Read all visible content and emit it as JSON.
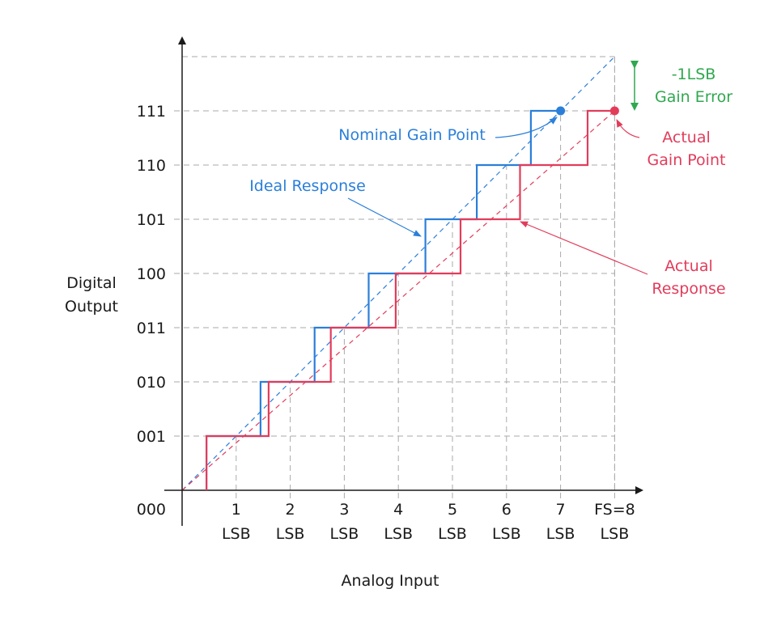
{
  "colors": {
    "ideal": "#2b7fd9",
    "actual": "#e23c5a",
    "gain_error": "#2fa84f",
    "grid": "#aaaaaa",
    "axis": "#1a1a1a"
  },
  "chart_data": {
    "type": "line",
    "xlabel": "Analog Input",
    "ylabel": [
      "Digital",
      "Output"
    ],
    "xlim": [
      0,
      8
    ],
    "ylim": [
      0,
      8
    ],
    "x_ticks": [
      {
        "value": 1,
        "num": "1",
        "unit": "LSB"
      },
      {
        "value": 2,
        "num": "2",
        "unit": "LSB"
      },
      {
        "value": 3,
        "num": "3",
        "unit": "LSB"
      },
      {
        "value": 4,
        "num": "4",
        "unit": "LSB"
      },
      {
        "value": 5,
        "num": "5",
        "unit": "LSB"
      },
      {
        "value": 6,
        "num": "6",
        "unit": "LSB"
      },
      {
        "value": 7,
        "num": "7",
        "unit": "LSB"
      },
      {
        "value": 8,
        "num": "FS=8",
        "unit": "LSB"
      }
    ],
    "y_ticks": [
      {
        "value": 0,
        "label": "000"
      },
      {
        "value": 1,
        "label": "001"
      },
      {
        "value": 2,
        "label": "010"
      },
      {
        "value": 3,
        "label": "011"
      },
      {
        "value": 4,
        "label": "100"
      },
      {
        "value": 5,
        "label": "101"
      },
      {
        "value": 6,
        "label": "110"
      },
      {
        "value": 7,
        "label": "111"
      }
    ],
    "series": [
      {
        "name": "Ideal Response",
        "color": "#2b7fd9",
        "style": "step",
        "points": [
          [
            0.45,
            0
          ],
          [
            0.45,
            1
          ],
          [
            1.45,
            1
          ],
          [
            1.45,
            2
          ],
          [
            2.45,
            2
          ],
          [
            2.45,
            3
          ],
          [
            3.45,
            3
          ],
          [
            3.45,
            4
          ],
          [
            4.5,
            4
          ],
          [
            4.5,
            5
          ],
          [
            5.45,
            5
          ],
          [
            5.45,
            6
          ],
          [
            6.45,
            6
          ],
          [
            6.45,
            7
          ],
          [
            7.0,
            7
          ]
        ]
      },
      {
        "name": "Actual Response",
        "color": "#e23c5a",
        "style": "step",
        "points": [
          [
            0.45,
            0
          ],
          [
            0.45,
            1
          ],
          [
            1.6,
            1
          ],
          [
            1.6,
            2
          ],
          [
            2.75,
            2
          ],
          [
            2.75,
            3
          ],
          [
            3.95,
            3
          ],
          [
            3.95,
            4
          ],
          [
            5.15,
            4
          ],
          [
            5.15,
            5
          ],
          [
            6.25,
            5
          ],
          [
            6.25,
            6
          ],
          [
            7.5,
            6
          ],
          [
            7.5,
            7
          ],
          [
            8.0,
            7
          ]
        ]
      }
    ],
    "reference_lines": [
      {
        "name": "ideal-line",
        "color": "#2b7fd9",
        "from": [
          0,
          0
        ],
        "to": [
          8,
          8
        ]
      },
      {
        "name": "actual-line",
        "color": "#e23c5a",
        "from": [
          0,
          0
        ],
        "to": [
          8,
          7
        ]
      }
    ],
    "points": [
      {
        "name": "nominal-gain-point",
        "x": 7,
        "y": 7,
        "color": "#2b7fd9"
      },
      {
        "name": "actual-gain-point",
        "x": 8,
        "y": 7,
        "color": "#e23c5a"
      }
    ],
    "annotations": {
      "nominal_gain_point": "Nominal Gain Point",
      "ideal_response": "Ideal Response",
      "actual_gain_point": [
        "Actual",
        "Gain Point"
      ],
      "actual_response": [
        "Actual",
        "Response"
      ],
      "gain_error": [
        "-1LSB",
        "Gain Error"
      ]
    },
    "gain_error_range": [
      7,
      8
    ],
    "grid": "dashed"
  }
}
